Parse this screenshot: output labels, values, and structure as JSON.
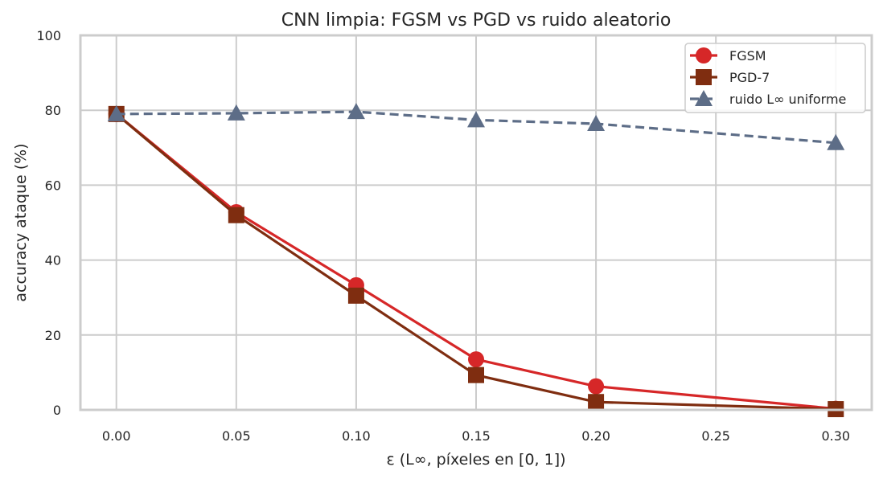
{
  "chart_data": {
    "type": "line",
    "title": "CNN limpia: FGSM vs PGD vs ruido aleatorio",
    "xlabel": "ε (L∞, píxeles en [0, 1])",
    "ylabel": "accuracy ataque (%)",
    "xlim": [
      -0.015,
      0.315
    ],
    "ylim": [
      0,
      100
    ],
    "xticks": [
      0.0,
      0.05,
      0.1,
      0.15,
      0.2,
      0.25,
      0.3
    ],
    "xtick_labels": [
      "0.00",
      "0.05",
      "0.10",
      "0.15",
      "0.20",
      "0.25",
      "0.30"
    ],
    "yticks": [
      0,
      20,
      40,
      60,
      80,
      100
    ],
    "ytick_labels": [
      "0",
      "20",
      "40",
      "60",
      "80",
      "100"
    ],
    "x": [
      0.0,
      0.05,
      0.1,
      0.15,
      0.2,
      0.3
    ],
    "grid": true,
    "legend_position": "top-right",
    "series": [
      {
        "name": "FGSM",
        "values": [
          79.0,
          52.8,
          33.3,
          13.5,
          6.3,
          0.3
        ],
        "color": "#d62728",
        "marker": "circle",
        "dash": false
      },
      {
        "name": "PGD-7",
        "values": [
          79.0,
          52.0,
          30.5,
          9.3,
          2.1,
          0.2
        ],
        "color": "#7f2d10",
        "marker": "square",
        "dash": false
      },
      {
        "name": "ruido L∞ uniforme",
        "values": [
          79.0,
          79.2,
          79.6,
          77.4,
          76.4,
          71.3
        ],
        "color": "#5d6d87",
        "marker": "triangle",
        "dash": true
      }
    ]
  }
}
